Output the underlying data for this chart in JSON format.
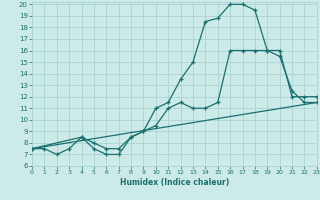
{
  "xlabel": "Humidex (Indice chaleur)",
  "bg_color": "#cceae7",
  "grid_color": "#aad4d0",
  "line_color": "#1a7070",
  "xlim": [
    0,
    23
  ],
  "ylim": [
    6,
    20.2
  ],
  "xticks": [
    0,
    1,
    2,
    3,
    4,
    5,
    6,
    7,
    8,
    9,
    10,
    11,
    12,
    13,
    14,
    15,
    16,
    17,
    18,
    19,
    20,
    21,
    22,
    23
  ],
  "yticks": [
    6,
    7,
    8,
    9,
    10,
    11,
    12,
    13,
    14,
    15,
    16,
    17,
    18,
    19,
    20
  ],
  "line1_x": [
    0,
    1,
    2,
    3,
    4,
    5,
    6,
    7,
    8,
    9,
    10,
    11,
    12,
    13,
    14,
    15,
    16,
    17,
    18,
    19,
    20,
    21,
    22,
    23
  ],
  "line1_y": [
    7.5,
    7.5,
    7.0,
    7.5,
    8.5,
    7.5,
    7.0,
    7.0,
    8.5,
    9.0,
    11.0,
    11.5,
    13.5,
    15.0,
    18.5,
    18.8,
    20.0,
    20.0,
    19.5,
    16.0,
    15.5,
    12.5,
    11.5,
    11.5
  ],
  "line2_x": [
    0,
    4,
    5,
    6,
    7,
    8,
    9,
    10,
    11,
    12,
    13,
    14,
    15,
    16,
    17,
    18,
    19,
    20,
    21,
    22,
    23
  ],
  "line2_y": [
    7.5,
    8.5,
    8.0,
    7.5,
    7.5,
    8.5,
    9.0,
    9.5,
    11.0,
    11.5,
    11.0,
    11.0,
    11.5,
    16.0,
    16.0,
    16.0,
    16.0,
    16.0,
    12.0,
    12.0,
    12.0
  ],
  "line3_x": [
    0,
    23
  ],
  "line3_y": [
    7.5,
    11.5
  ]
}
